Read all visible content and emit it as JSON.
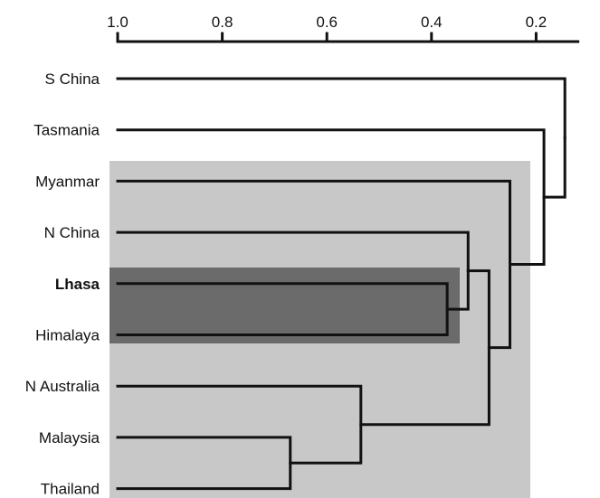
{
  "axis": {
    "ticks": [
      {
        "value": 1.0,
        "label": "1.0"
      },
      {
        "value": 0.8,
        "label": "0.8"
      },
      {
        "value": 0.6,
        "label": "0.6"
      },
      {
        "value": 0.4,
        "label": "0.4"
      },
      {
        "value": 0.2,
        "label": "0.2"
      }
    ],
    "range": [
      1.0,
      0.12
    ]
  },
  "leaves": [
    {
      "id": "schina",
      "label": "S China",
      "bold": false
    },
    {
      "id": "tasmania",
      "label": "Tasmania",
      "bold": false
    },
    {
      "id": "myanmar",
      "label": "Myanmar",
      "bold": false
    },
    {
      "id": "nchina",
      "label": "N China",
      "bold": false
    },
    {
      "id": "lhasa",
      "label": "Lhasa",
      "bold": true
    },
    {
      "id": "himalaya",
      "label": "Himalaya",
      "bold": false
    },
    {
      "id": "naustralia",
      "label": "N Australia",
      "bold": false
    },
    {
      "id": "malaysia",
      "label": "Malaysia",
      "bold": false
    },
    {
      "id": "thailand",
      "label": "Thailand",
      "bold": false
    }
  ],
  "merges": [
    {
      "id": "c_lh",
      "children": [
        "lhasa",
        "himalaya"
      ],
      "height": 0.37
    },
    {
      "id": "c_ma_th",
      "children": [
        "malaysia",
        "thailand"
      ],
      "height": 0.67
    },
    {
      "id": "c_nc",
      "children": [
        "nchina",
        "c_lh"
      ],
      "height": 0.33
    },
    {
      "id": "c_na",
      "children": [
        "naustralia",
        "c_ma_th"
      ],
      "height": 0.535
    },
    {
      "id": "c_big",
      "children": [
        "c_nc",
        "c_na"
      ],
      "height": 0.29
    },
    {
      "id": "c_my",
      "children": [
        "myanmar",
        "c_big"
      ],
      "height": 0.25
    },
    {
      "id": "c_tas",
      "children": [
        "tasmania",
        "c_my"
      ],
      "height": 0.185
    },
    {
      "id": "c_root",
      "children": [
        "schina",
        "c_tas"
      ],
      "height": 0.145
    }
  ],
  "highlights": [
    {
      "id": "outer",
      "color": "#c8c8c8"
    },
    {
      "id": "inner",
      "color": "#6b6b6b"
    }
  ]
}
